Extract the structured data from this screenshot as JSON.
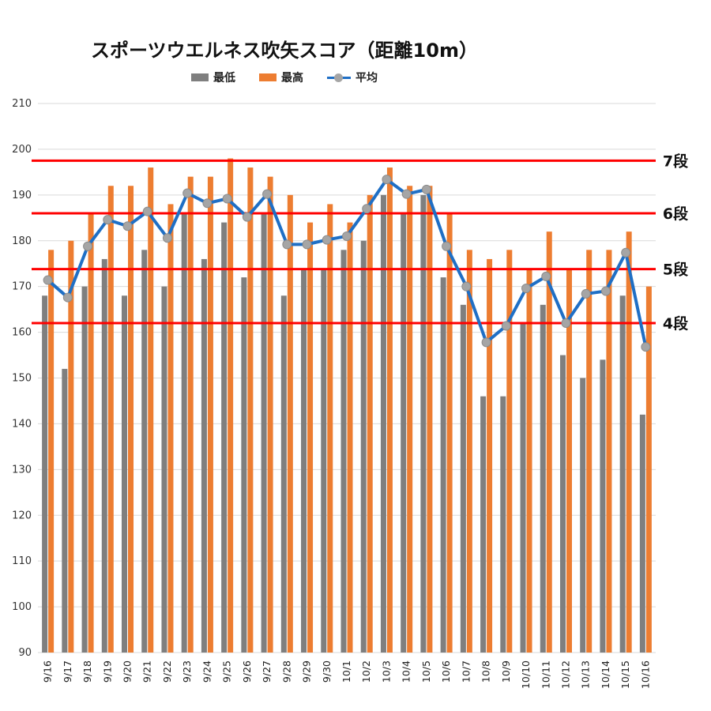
{
  "chart_data": {
    "type": "bar",
    "title": "スポーツウエルネス吹矢スコア（距離10m）",
    "xlabel": "",
    "ylabel": "",
    "ylim": [
      90,
      210
    ],
    "yticks": [
      90,
      100,
      110,
      120,
      130,
      140,
      150,
      160,
      170,
      180,
      190,
      200,
      210
    ],
    "grid": true,
    "legend_position": "top",
    "categories": [
      "9/16",
      "9/17",
      "9/18",
      "9/19",
      "9/20",
      "9/21",
      "9/22",
      "9/23",
      "9/24",
      "9/25",
      "9/26",
      "9/27",
      "9/28",
      "9/29",
      "9/30",
      "10/1",
      "10/2",
      "10/3",
      "10/4",
      "10/5",
      "10/6",
      "10/7",
      "10/8",
      "10/9",
      "10/10",
      "10/11",
      "10/12",
      "10/13",
      "10/14",
      "10/15",
      "10/16"
    ],
    "series": [
      {
        "name": "最低",
        "type": "bar",
        "color": "#7f7f7f",
        "values": [
          168,
          152,
          170,
          176,
          168,
          178,
          170,
          186,
          176,
          184,
          172,
          186,
          168,
          174,
          174,
          178,
          180,
          190,
          186,
          190,
          172,
          166,
          146,
          146,
          162,
          166,
          155,
          150,
          154,
          168,
          142
        ]
      },
      {
        "name": "最高",
        "type": "bar",
        "color": "#ed7d31",
        "values": [
          178,
          180,
          186,
          192,
          192,
          196,
          188,
          194,
          194,
          198,
          196,
          194,
          190,
          184,
          188,
          184,
          190,
          196,
          192,
          192,
          186,
          178,
          176,
          178,
          174,
          182,
          174,
          178,
          178,
          182,
          170
        ]
      },
      {
        "name": "平均",
        "type": "line",
        "color": "#1f6fc5",
        "marker_color": "#a5a5a5",
        "values": [
          171.4,
          167.6,
          178.8,
          184.6,
          183.2,
          186.4,
          180.6,
          190.4,
          188.2,
          189.2,
          185.2,
          190.2,
          179.2,
          179.2,
          180.2,
          181.0,
          187.0,
          193.4,
          190.2,
          191.2,
          178.8,
          170.0,
          157.8,
          161.4,
          169.6,
          172.2,
          162.0,
          168.4,
          169.0,
          177.4,
          156.8
        ]
      }
    ],
    "reference_lines": [
      {
        "label": "7段",
        "value": 197.5,
        "color": "#ff0000"
      },
      {
        "label": "6段",
        "value": 186.0,
        "color": "#ff0000"
      },
      {
        "label": "5段",
        "value": 173.8,
        "color": "#ff0000"
      },
      {
        "label": "4段",
        "value": 162.0,
        "color": "#ff0000"
      }
    ]
  }
}
